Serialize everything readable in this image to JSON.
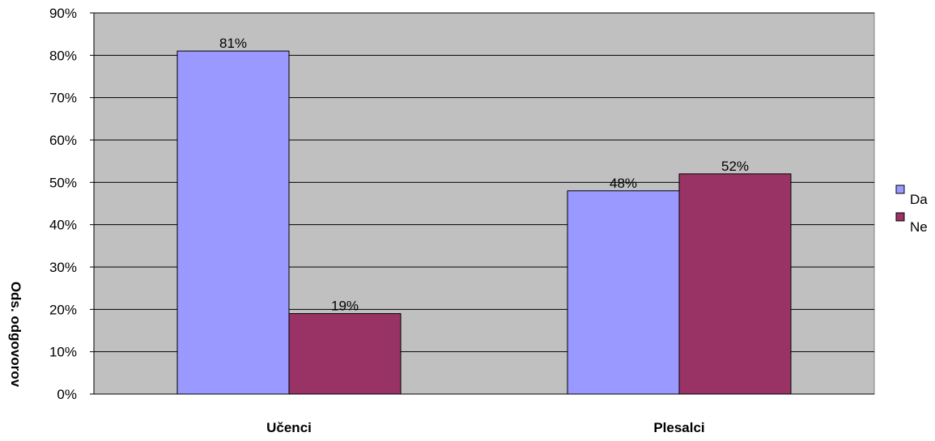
{
  "chart_data": {
    "type": "bar",
    "categories": [
      "Učenci",
      "Plesalci"
    ],
    "series": [
      {
        "name": "Da",
        "values": [
          81,
          48
        ],
        "color": "#9999ff",
        "labels": [
          "81%",
          "48%"
        ]
      },
      {
        "name": "Ne",
        "values": [
          19,
          52
        ],
        "color": "#993366",
        "labels": [
          "19%",
          "52%"
        ]
      }
    ],
    "ylabel": "Ods. odgovorov",
    "xlabel": "",
    "ylim": [
      0,
      90
    ],
    "yticks": [
      "0%",
      "10%",
      "20%",
      "30%",
      "40%",
      "50%",
      "60%",
      "70%",
      "80%",
      "90%"
    ],
    "grid": true,
    "legend": "right",
    "plot_background": "#c0c0c0"
  }
}
